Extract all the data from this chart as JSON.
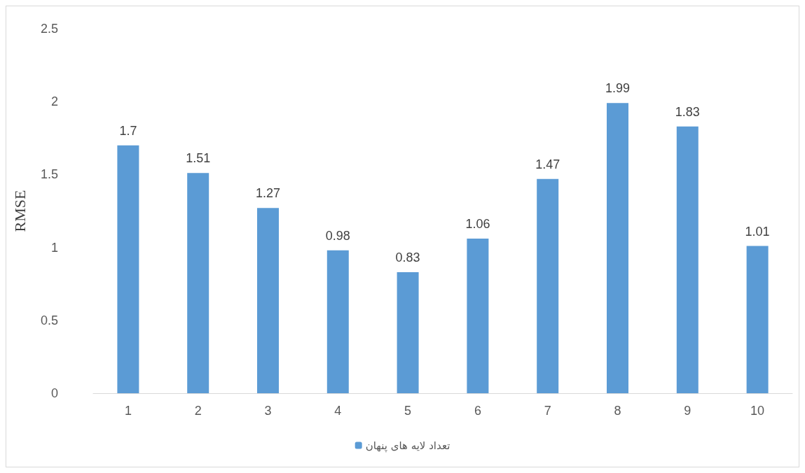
{
  "chart_data": {
    "type": "bar",
    "ylabel": "RMSE",
    "categories": [
      "1",
      "2",
      "3",
      "4",
      "5",
      "6",
      "7",
      "8",
      "9",
      "10"
    ],
    "series": [
      {
        "name": "تعداد لایه های پنهان",
        "color": "#5b9bd5",
        "values": [
          1.7,
          1.51,
          1.27,
          0.98,
          0.83,
          1.06,
          1.47,
          1.99,
          1.83,
          1.01
        ]
      }
    ],
    "ylim": [
      0,
      2.5
    ],
    "yticks": [
      0,
      0.5,
      1,
      1.5,
      2,
      2.5
    ],
    "grid": false,
    "legend": "bottom",
    "data_labels": true
  }
}
